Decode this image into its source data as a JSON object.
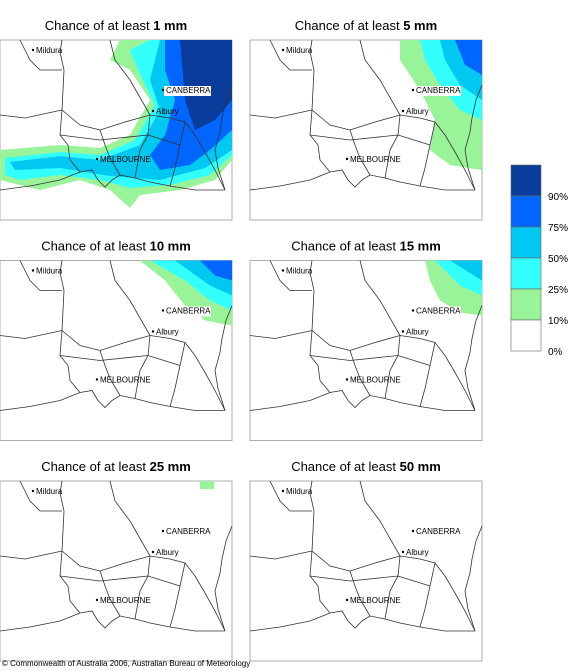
{
  "panels": [
    {
      "title_prefix": "Chance of at least",
      "threshold": "1 mm",
      "cities": [
        "Mildura",
        "CANBERRA",
        "Albury",
        "MELBOURNE"
      ]
    },
    {
      "title_prefix": "Chance of at least",
      "threshold": "5 mm",
      "cities": [
        "Mildura",
        "CANBERRA",
        "Albury",
        "MELBOURNE"
      ]
    },
    {
      "title_prefix": "Chance of at least",
      "threshold": "10 mm",
      "cities": [
        "Mildura",
        "CANBERRA",
        "Albury",
        "MELBOURNE"
      ]
    },
    {
      "title_prefix": "Chance of at least",
      "threshold": "15 mm",
      "cities": [
        "Mildura",
        "CANBERRA",
        "Albury",
        "MELBOURNE"
      ]
    },
    {
      "title_prefix": "Chance of at least",
      "threshold": "25 mm",
      "cities": [
        "Mildura",
        "CANBERRA",
        "Albury",
        "MELBOURNE"
      ]
    },
    {
      "title_prefix": "Chance of at least",
      "threshold": "50 mm",
      "cities": [
        "Mildura",
        "CANBERRA",
        "Albury",
        "MELBOURNE"
      ]
    }
  ],
  "legend": {
    "labels": [
      "90%",
      "75%",
      "50%",
      "25%",
      "10%",
      "0%"
    ],
    "colors": [
      "#0a3c9c",
      "#0066ff",
      "#00c8f0",
      "#33ffff",
      "#99f399",
      "#ffffff"
    ]
  },
  "footer": "© Commonwealth of Australia 2006, Australian Bureau of Meteorology"
}
